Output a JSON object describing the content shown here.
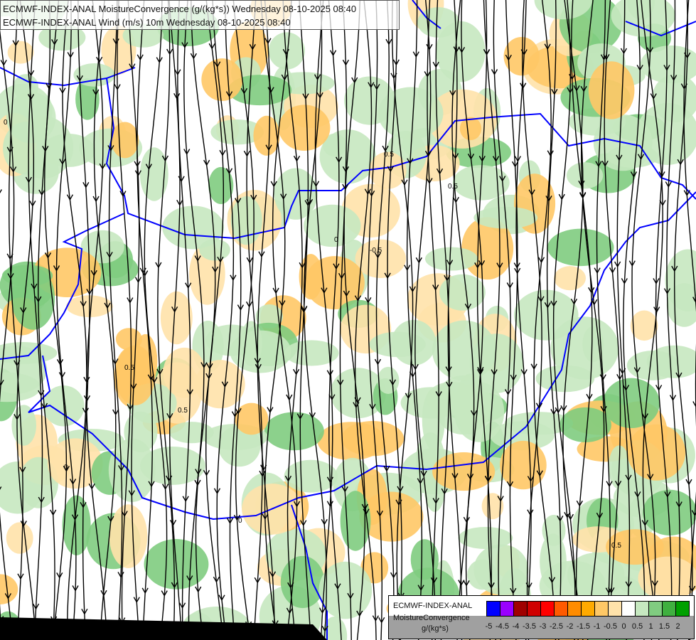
{
  "header": {
    "line1": "ECMWF-INDEX-ANAL MoistureConvergence (g/(kg*s)) Wednesday 08-10-2025 08:40",
    "line2": "ECMWF-INDEX-ANAL Wind (m/s) 10m Wednesday 08-10-2025 08:40"
  },
  "legend": {
    "title_line1": "ECMWF-INDEX-ANAL",
    "title_line2": "MoistureConvergence",
    "unit": "g/(kg*s)",
    "ticks": [
      "-5",
      "-4.5",
      "-4",
      "-3.5",
      "-3",
      "-2.5",
      "-2",
      "-1.5",
      "-1",
      "-0.5",
      "0",
      "0.5",
      "1",
      "1.5",
      "2"
    ],
    "colors": [
      "#0000ff",
      "#9a00ff",
      "#a00000",
      "#d00000",
      "#ff0000",
      "#ff5a00",
      "#ff8c00",
      "#ffaa00",
      "#ffc866",
      "#ffe2aa",
      "#ffffff",
      "#c6e8c0",
      "#80cc80",
      "#40b040",
      "#00a000"
    ]
  },
  "map": {
    "contour_labels": [
      "0",
      "0.5",
      "-0.5",
      "0",
      "0.5",
      "0",
      "0.5",
      "0.5",
      "0",
      "0.5"
    ],
    "border_color": "#0000ff",
    "streamline_color": "#000000"
  }
}
